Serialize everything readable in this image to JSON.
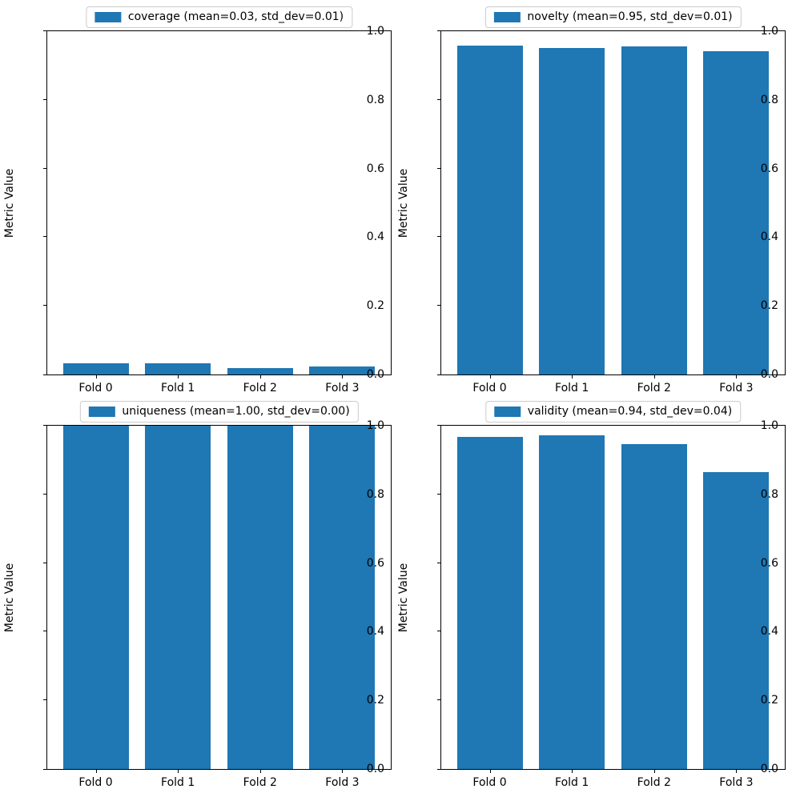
{
  "figure": {
    "background": "#ffffff",
    "bar_color": "#1f77b4",
    "legend_border_color": "#cccccc",
    "ylabel": "Metric Value",
    "yticks": [
      "0.0",
      "0.2",
      "0.4",
      "0.6",
      "0.8",
      "1.0"
    ],
    "categories": [
      "Fold 0",
      "Fold 1",
      "Fold 2",
      "Fold 3"
    ]
  },
  "chart_data": [
    {
      "type": "bar",
      "legend": "coverage (mean=0.03, std_dev=0.01)",
      "legend_position": "upper center, above axes",
      "categories": [
        "Fold 0",
        "Fold 1",
        "Fold 2",
        "Fold 3"
      ],
      "values": [
        0.032,
        0.033,
        0.019,
        0.024
      ],
      "mean": 0.03,
      "std_dev": 0.01,
      "xlabel": "",
      "ylabel": "Metric Value",
      "ylim": [
        0.0,
        1.0
      ],
      "grid": false
    },
    {
      "type": "bar",
      "legend": "novelty (mean=0.95, std_dev=0.01)",
      "legend_position": "upper center, above axes",
      "categories": [
        "Fold 0",
        "Fold 1",
        "Fold 2",
        "Fold 3"
      ],
      "values": [
        0.958,
        0.951,
        0.956,
        0.942
      ],
      "mean": 0.95,
      "std_dev": 0.01,
      "xlabel": "",
      "ylabel": "Metric Value",
      "ylim": [
        0.0,
        1.0
      ],
      "grid": false
    },
    {
      "type": "bar",
      "legend": "uniqueness (mean=1.00, std_dev=0.00)",
      "legend_position": "upper center, above axes",
      "categories": [
        "Fold 0",
        "Fold 1",
        "Fold 2",
        "Fold 3"
      ],
      "values": [
        1.0,
        1.0,
        1.0,
        1.0
      ],
      "mean": 1.0,
      "std_dev": 0.0,
      "xlabel": "",
      "ylabel": "Metric Value",
      "ylim": [
        0.0,
        1.0
      ],
      "grid": false
    },
    {
      "type": "bar",
      "legend": "validity (mean=0.94, std_dev=0.04)",
      "legend_position": "upper center, above axes",
      "categories": [
        "Fold 0",
        "Fold 1",
        "Fold 2",
        "Fold 3"
      ],
      "values": [
        0.968,
        0.972,
        0.946,
        0.864
      ],
      "mean": 0.94,
      "std_dev": 0.04,
      "xlabel": "",
      "ylabel": "Metric Value",
      "ylim": [
        0.0,
        1.0
      ],
      "grid": false
    }
  ]
}
